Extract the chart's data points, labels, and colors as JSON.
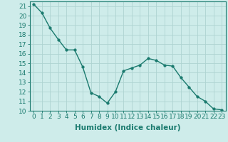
{
  "x": [
    0,
    1,
    2,
    3,
    4,
    5,
    6,
    7,
    8,
    9,
    10,
    11,
    12,
    13,
    14,
    15,
    16,
    17,
    18,
    19,
    20,
    21,
    22,
    23
  ],
  "y": [
    21.2,
    20.3,
    18.7,
    17.5,
    16.4,
    16.4,
    14.6,
    11.9,
    11.5,
    10.8,
    12.0,
    14.2,
    14.5,
    14.8,
    15.5,
    15.3,
    14.8,
    14.7,
    13.5,
    12.5,
    11.5,
    11.0,
    10.2,
    10.1
  ],
  "line_color": "#1a7a6e",
  "marker_color": "#1a7a6e",
  "bg_color": "#ceecea",
  "grid_color": "#aed4d1",
  "xlabel": "Humidex (Indice chaleur)",
  "ylim": [
    10,
    21.5
  ],
  "xlim": [
    -0.5,
    23.5
  ],
  "yticks": [
    10,
    11,
    12,
    13,
    14,
    15,
    16,
    17,
    18,
    19,
    20,
    21
  ],
  "xticks": [
    0,
    1,
    2,
    3,
    4,
    5,
    6,
    7,
    8,
    9,
    10,
    11,
    12,
    13,
    14,
    15,
    16,
    17,
    18,
    19,
    20,
    21,
    22,
    23
  ],
  "tick_color": "#1a7a6e",
  "label_color": "#1a7a6e",
  "axis_color": "#1a7a6e",
  "font_size": 6.5,
  "xlabel_fontsize": 7.5,
  "marker_size": 2.5,
  "line_width": 1.0
}
